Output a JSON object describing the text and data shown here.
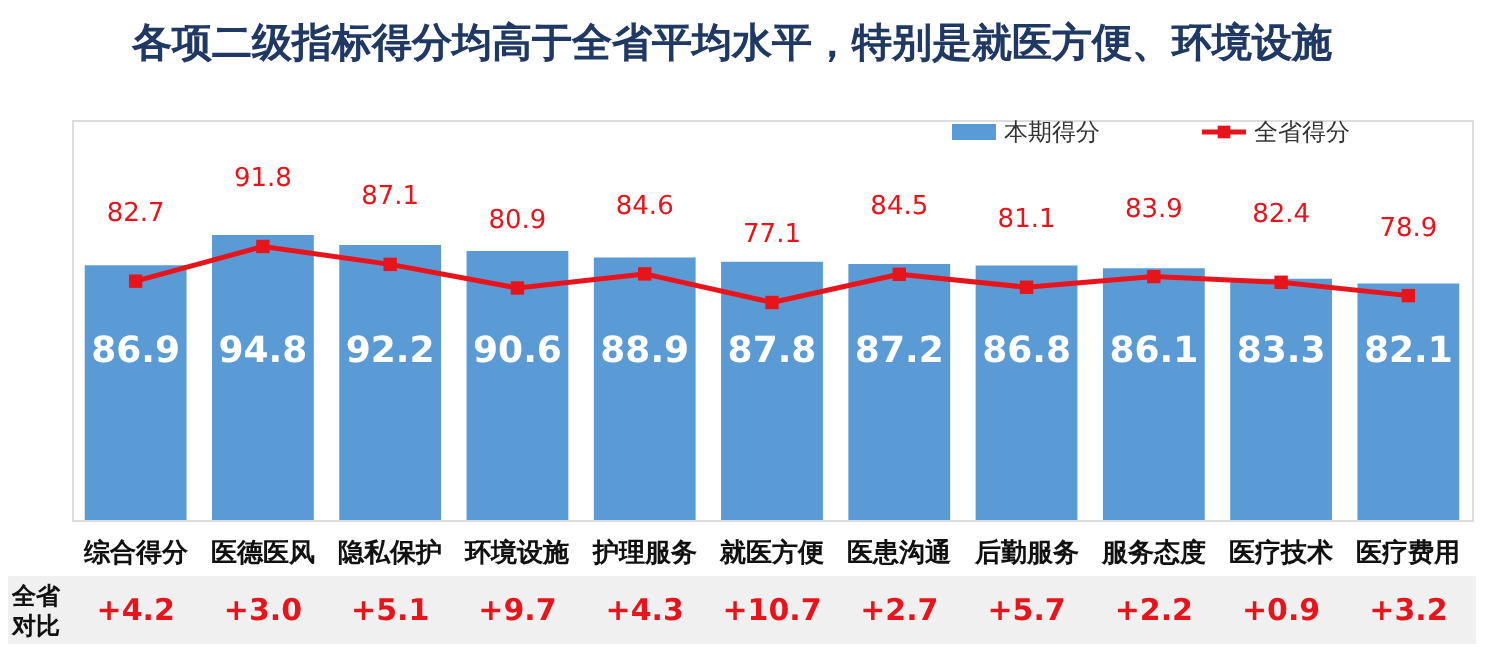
{
  "chart_data": {
    "type": "bar",
    "title": "各项二级指标得分均高于全省平均水平，特别是就医方便、环境设施",
    "categories": [
      "综合得分",
      "医德医风",
      "隐私保护",
      "环境设施",
      "护理服务",
      "就医方便",
      "医患沟通",
      "后勤服务",
      "服务态度",
      "医疗技术",
      "医疗费用"
    ],
    "series": [
      {
        "name": "本期得分",
        "color": "#5b9bd5",
        "values": [
          86.9,
          94.8,
          92.2,
          90.6,
          88.9,
          87.8,
          87.2,
          86.8,
          86.1,
          83.3,
          82.1
        ]
      },
      {
        "name": "全省得分",
        "type": "line",
        "color": "#e8141b",
        "marker": "square",
        "line_style": "solid",
        "values": [
          82.7,
          91.8,
          87.1,
          80.9,
          84.6,
          77.1,
          84.5,
          81.1,
          83.9,
          82.4,
          78.9
        ]
      }
    ],
    "ylim": [
      20,
      125
    ],
    "data_labels": true,
    "legend": "top right",
    "grid": false,
    "tick_labels": "x",
    "annotations": [
      "全省对比",
      "+4.2",
      "+3.0",
      "+5.1",
      "+9.7",
      "+4.3",
      "+10.7",
      "+2.7",
      "+5.7",
      "+2.2",
      "+0.9",
      "+3.2"
    ]
  }
}
